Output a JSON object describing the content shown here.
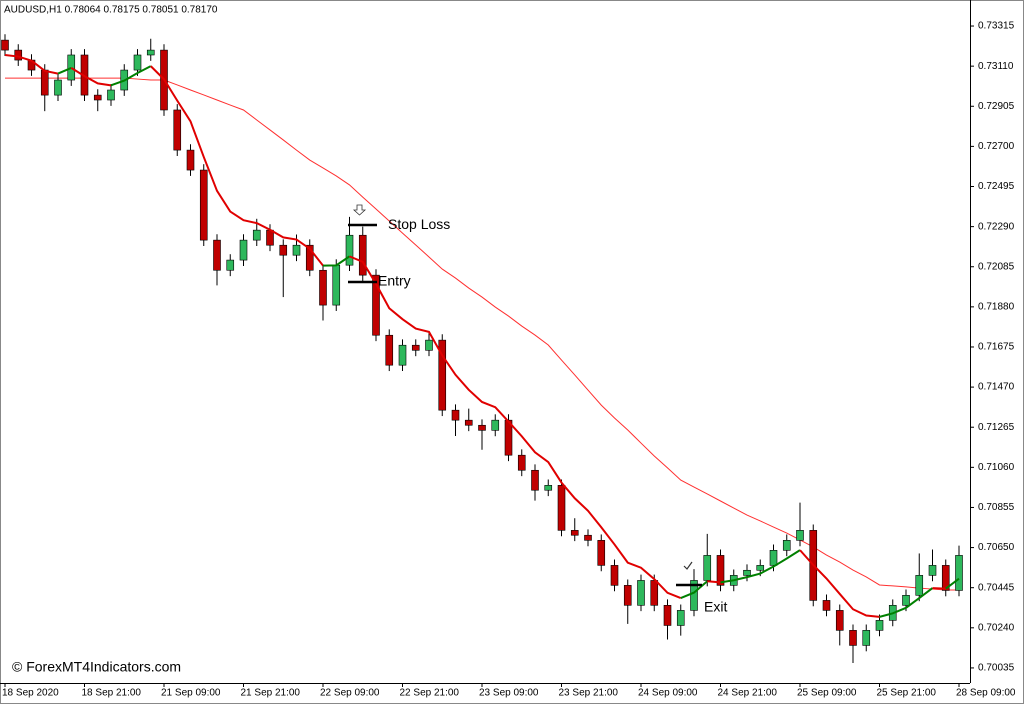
{
  "chart_data": {
    "type": "candlestick",
    "title": "AUDUSD,H1  0.78064 0.78175 0.78051 0.78170",
    "watermark": "© ForexMT4Indicators.com",
    "categories": [
      "18 Sep 2020",
      null,
      null,
      null,
      null,
      null,
      "18 Sep 21:00",
      null,
      null,
      null,
      null,
      null,
      "21 Sep 09:00",
      null,
      null,
      null,
      null,
      null,
      "21 Sep 21:00",
      null,
      null,
      null,
      null,
      null,
      "22 Sep 09:00",
      null,
      null,
      null,
      null,
      null,
      "22 Sep 21:00",
      null,
      null,
      null,
      null,
      null,
      "23 Sep 09:00",
      null,
      null,
      null,
      null,
      null,
      "23 Sep 21:00",
      null,
      null,
      null,
      null,
      null,
      "24 Sep 09:00",
      null,
      null,
      null,
      null,
      null,
      "24 Sep 21:00",
      null,
      null,
      null,
      null,
      null,
      "25 Sep 09:00",
      null,
      null,
      null,
      null,
      null,
      "25 Sep 21:00",
      null,
      null,
      null,
      null,
      null,
      "28 Sep 09:00"
    ],
    "open": [
      0.73243,
      0.73192,
      0.73141,
      0.7309,
      0.72962,
      0.73039,
      0.73167,
      0.72962,
      0.72937,
      0.72988,
      0.7309,
      0.73167,
      0.73192,
      0.72886,
      0.72681,
      0.72579,
      0.72221,
      0.72067,
      0.72119,
      0.72221,
      0.72272,
      0.72195,
      0.72144,
      0.72195,
      0.72067,
      0.71889,
      0.72093,
      0.72246,
      0.72042,
      0.71735,
      0.71582,
      0.71684,
      0.71658,
      0.7171,
      0.71352,
      0.71301,
      0.71275,
      0.71249,
      0.71301,
      0.71122,
      0.71045,
      0.70943,
      0.70968,
      0.70738,
      0.70713,
      0.70687,
      0.70559,
      0.70457,
      0.70355,
      0.70482,
      0.70355,
      0.70252,
      0.70329,
      0.70482,
      0.7061,
      0.70457,
      0.70508,
      0.70534,
      0.70559,
      0.70636,
      0.70687,
      0.70738,
      0.7038,
      0.70329,
      0.70227,
      0.7015,
      0.70227,
      0.70278,
      0.70355,
      0.70406,
      0.70508,
      0.70559,
      0.70431
    ],
    "high": [
      0.73273,
      0.73222,
      0.73171,
      0.7312,
      0.73069,
      0.73197,
      0.73197,
      0.72992,
      0.73018,
      0.7312,
      0.73197,
      0.7325,
      0.73222,
      0.72916,
      0.72711,
      0.72609,
      0.72251,
      0.72149,
      0.72251,
      0.7233,
      0.72302,
      0.72225,
      0.7225,
      0.72225,
      0.72097,
      0.72123,
      0.7234,
      0.7229,
      0.72072,
      0.71765,
      0.71714,
      0.71714,
      0.7175,
      0.7174,
      0.71382,
      0.7136,
      0.71305,
      0.71331,
      0.71331,
      0.71152,
      0.71075,
      0.70998,
      0.70998,
      0.708,
      0.70743,
      0.70717,
      0.70589,
      0.70487,
      0.70512,
      0.70512,
      0.70385,
      0.70359,
      0.7054,
      0.7072,
      0.7064,
      0.70538,
      0.70564,
      0.70589,
      0.70666,
      0.70717,
      0.7088,
      0.70768,
      0.7041,
      0.70359,
      0.70257,
      0.70257,
      0.70308,
      0.70385,
      0.70436,
      0.7062,
      0.7064,
      0.70589,
      0.7066
    ],
    "low": [
      0.73162,
      0.73111,
      0.7306,
      0.7288,
      0.72932,
      0.73009,
      0.72932,
      0.7288,
      0.72907,
      0.72958,
      0.7306,
      0.73137,
      0.72856,
      0.72651,
      0.72549,
      0.72191,
      0.7199,
      0.72037,
      0.72089,
      0.72191,
      0.72165,
      0.7193,
      0.72114,
      0.72037,
      0.7181,
      0.71859,
      0.72063,
      0.72012,
      0.71705,
      0.71552,
      0.71552,
      0.71628,
      0.71628,
      0.71322,
      0.7122,
      0.71245,
      0.7115,
      0.71219,
      0.71092,
      0.71015,
      0.7089,
      0.70913,
      0.70708,
      0.70683,
      0.70657,
      0.70529,
      0.70427,
      0.7026,
      0.70325,
      0.70325,
      0.7018,
      0.702,
      0.70299,
      0.70452,
      0.70427,
      0.70427,
      0.70478,
      0.70504,
      0.70529,
      0.70606,
      0.70657,
      0.7035,
      0.70299,
      0.7015,
      0.7006,
      0.7012,
      0.70197,
      0.70248,
      0.70325,
      0.70376,
      0.70478,
      0.70401,
      0.70401
    ],
    "close": [
      0.73192,
      0.73141,
      0.7309,
      0.72962,
      0.73039,
      0.73167,
      0.72962,
      0.72937,
      0.72988,
      0.7309,
      0.73167,
      0.73192,
      0.72886,
      0.72681,
      0.72579,
      0.72221,
      0.72067,
      0.72119,
      0.72221,
      0.72272,
      0.72195,
      0.72144,
      0.72195,
      0.72067,
      0.71889,
      0.72093,
      0.72246,
      0.72042,
      0.71735,
      0.71582,
      0.71684,
      0.71658,
      0.7171,
      0.71352,
      0.71301,
      0.71275,
      0.71249,
      0.71301,
      0.71122,
      0.71045,
      0.70943,
      0.70968,
      0.70738,
      0.70713,
      0.70687,
      0.70559,
      0.70457,
      0.70355,
      0.70482,
      0.70355,
      0.70252,
      0.70329,
      0.70482,
      0.7061,
      0.70457,
      0.70508,
      0.70534,
      0.70559,
      0.70636,
      0.70687,
      0.70738,
      0.7038,
      0.70329,
      0.70227,
      0.7015,
      0.70227,
      0.70278,
      0.70355,
      0.70406,
      0.70508,
      0.70559,
      0.70431,
      0.7061
    ],
    "up_color": "#2eb85c",
    "down_color": "#c00000",
    "ma_fast": {
      "up_color": "#008000",
      "down_color": "#e00000",
      "values": [
        0.73167,
        0.73159,
        0.73138,
        0.73086,
        0.73072,
        0.73101,
        0.73059,
        0.73022,
        0.73012,
        0.73036,
        0.73075,
        0.7311,
        0.73043,
        0.72934,
        0.72828,
        0.72646,
        0.72473,
        0.72367,
        0.72323,
        0.72308,
        0.72274,
        0.72235,
        0.72224,
        0.72177,
        0.72091,
        0.72092,
        0.72138,
        0.7211,
        0.71998,
        0.71873,
        0.71817,
        0.71769,
        0.71752,
        0.71632,
        0.71533,
        0.71456,
        0.71394,
        0.71367,
        0.71294,
        0.71219,
        0.71137,
        0.71087,
        0.70982,
        0.70902,
        0.70838,
        0.70754,
        0.70666,
        0.70573,
        0.70547,
        0.70489,
        0.70419,
        0.70392,
        0.7042,
        0.70478,
        0.70472,
        0.70483,
        0.70499,
        0.70517,
        0.70553,
        0.70594,
        0.70637,
        0.70561,
        0.70492,
        0.70413,
        0.70335,
        0.70303,
        0.70296,
        0.70314,
        0.70342,
        0.70392,
        0.70443,
        0.7044,
        0.70491
      ]
    },
    "ma_slow": {
      "color": "#ff3030",
      "values": [
        0.73049,
        0.73049,
        0.73049,
        0.73049,
        0.73049,
        0.73049,
        0.73049,
        0.73049,
        0.73049,
        0.73049,
        0.73044,
        0.73039,
        0.73039,
        0.73014,
        0.72988,
        0.72963,
        0.72937,
        0.72911,
        0.72886,
        0.72835,
        0.72784,
        0.72733,
        0.72681,
        0.7263,
        0.7259,
        0.72549,
        0.72503,
        0.72441,
        0.7238,
        0.72319,
        0.72257,
        0.72196,
        0.72135,
        0.72073,
        0.72027,
        0.71976,
        0.7193,
        0.71879,
        0.71833,
        0.71782,
        0.71736,
        0.71685,
        0.71608,
        0.71532,
        0.71455,
        0.71378,
        0.71312,
        0.71251,
        0.71184,
        0.71118,
        0.71057,
        0.70995,
        0.70959,
        0.70924,
        0.70888,
        0.70852,
        0.70816,
        0.70786,
        0.70755,
        0.70724,
        0.70689,
        0.70653,
        0.70612,
        0.70576,
        0.70535,
        0.705,
        0.70459,
        0.70454,
        0.70449,
        0.70443,
        0.70438,
        0.70433,
        0.70433
      ]
    },
    "annotations": [
      {
        "text": "Stop Loss",
        "price": 0.72298
      },
      {
        "text": "Entry",
        "price": 0.72007
      },
      {
        "text": "Exit",
        "price": 0.70459
      }
    ],
    "ylim": [
      0.69958,
      0.73448
    ],
    "yticks": [
      0.73315,
      {
        "value": 0.7311,
        "label": "0.73110"
      },
      0.72905,
      {
        "value": 0.727,
        "label": "0.72700"
      },
      0.72495,
      {
        "value": 0.7229,
        "label": "0.72290"
      },
      0.72085,
      {
        "value": 0.7188,
        "label": "0.71880"
      },
      0.71675,
      {
        "value": 0.7147,
        "label": "0.71470"
      },
      0.71265,
      {
        "value": 0.7106,
        "label": "0.71060"
      },
      0.70855,
      {
        "value": 0.7065,
        "label": "0.70650"
      },
      0.70445,
      {
        "value": 0.7024,
        "label": "0.70240"
      },
      0.70035
    ],
    "grid": false
  }
}
